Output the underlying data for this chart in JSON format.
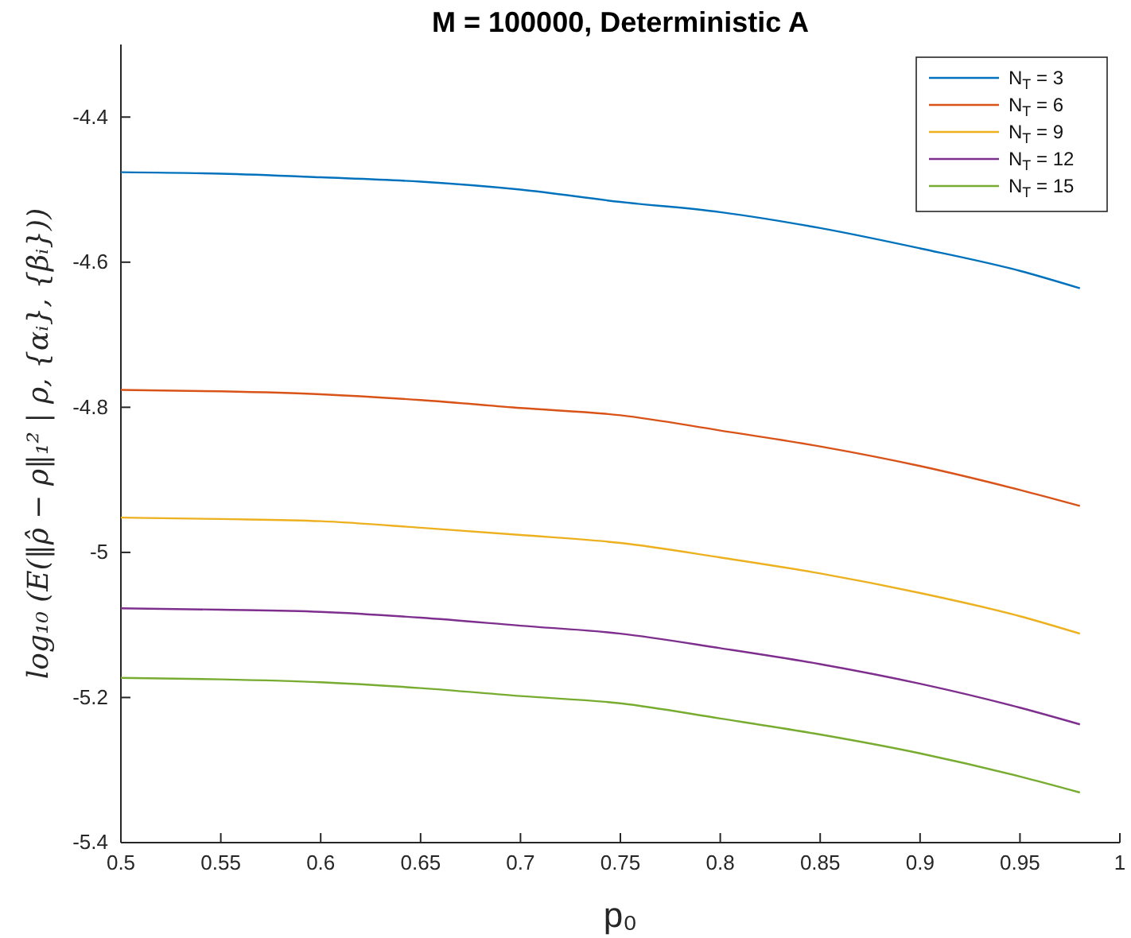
{
  "chart_data": {
    "type": "line",
    "title": "M = 100000, Deterministic A",
    "xlabel": "p₀",
    "ylabel": "log₁₀ (E(‖ρ̂ − ρ‖₁² | ρ, {αᵢ}, {βᵢ}))",
    "x": [
      0.5,
      0.55,
      0.6,
      0.65,
      0.7,
      0.75,
      0.8,
      0.85,
      0.9,
      0.95,
      0.98
    ],
    "series": [
      {
        "name": "N$_{T}$ = 3",
        "color": "#0072bd",
        "values": [
          -4.476,
          -4.478,
          -4.483,
          -4.489,
          -4.5,
          -4.517,
          -4.531,
          -4.553,
          -4.581,
          -4.612,
          -4.636
        ]
      },
      {
        "name": "N$_{T}$ = 6",
        "color": "#d95319",
        "values": [
          -4.776,
          -4.778,
          -4.782,
          -4.79,
          -4.801,
          -4.811,
          -4.832,
          -4.854,
          -4.881,
          -4.914,
          -4.936
        ]
      },
      {
        "name": "N$_{T}$ = 9",
        "color": "#edb120",
        "values": [
          -4.952,
          -4.954,
          -4.957,
          -4.966,
          -4.976,
          -4.987,
          -5.007,
          -5.029,
          -5.056,
          -5.088,
          -5.112
        ]
      },
      {
        "name": "N$_{T}$ = 12",
        "color": "#7e2f8e",
        "values": [
          -5.077,
          -5.079,
          -5.082,
          -5.09,
          -5.101,
          -5.112,
          -5.132,
          -5.154,
          -5.181,
          -5.214,
          -5.237
        ]
      },
      {
        "name": "N$_{T}$ = 15",
        "color": "#77ac30",
        "values": [
          -5.173,
          -5.175,
          -5.179,
          -5.187,
          -5.198,
          -5.208,
          -5.229,
          -5.251,
          -5.277,
          -5.309,
          -5.331
        ]
      }
    ],
    "xlim": [
      0.5,
      1
    ],
    "xticks": [
      0.5,
      0.55,
      0.6,
      0.65,
      0.7,
      0.75,
      0.8,
      0.85,
      0.9,
      0.95,
      1
    ],
    "ylim": [
      -5.4,
      -4.3
    ],
    "yticks": [
      -5.4,
      -5.2,
      -5,
      -4.8,
      -4.6,
      -4.4
    ],
    "grid": false,
    "legend": "top right",
    "marker": "none",
    "line_style": "solid"
  }
}
